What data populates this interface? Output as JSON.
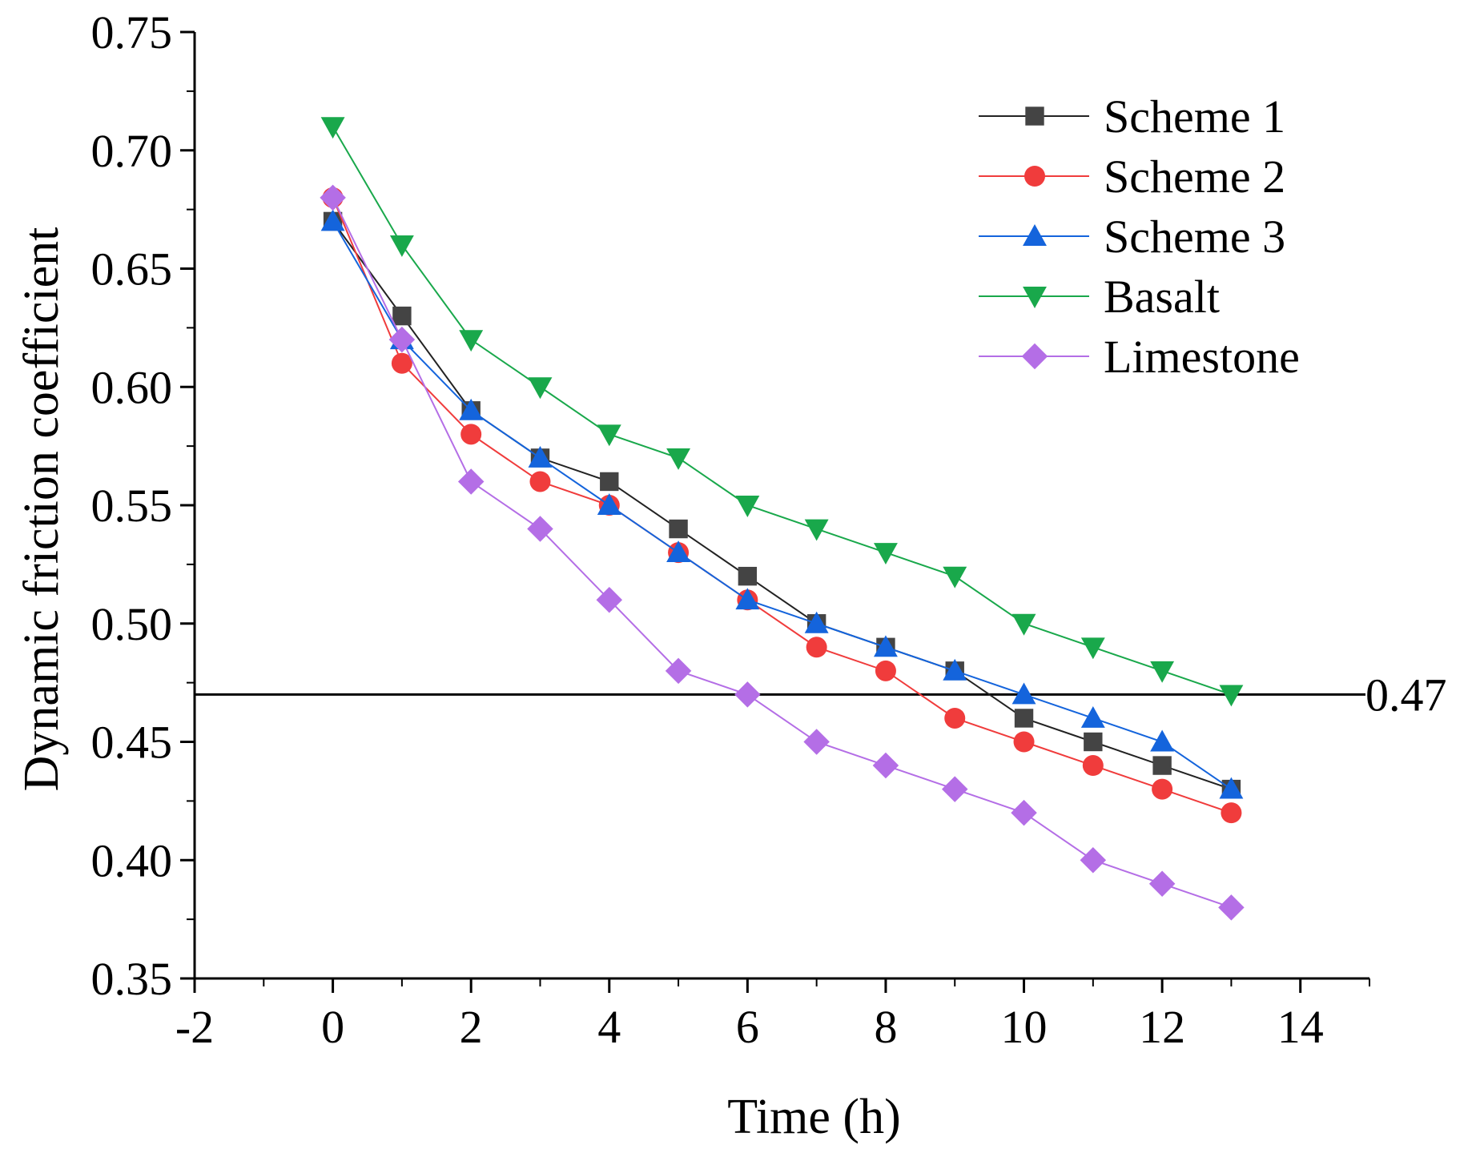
{
  "chart_data": {
    "type": "line",
    "title": "",
    "xlabel": "Time (h)",
    "ylabel": "Dynamic friction coefficient",
    "xlim": [
      -2,
      15
    ],
    "ylim": [
      0.35,
      0.75
    ],
    "x_ticks": [
      -2,
      0,
      2,
      4,
      6,
      8,
      10,
      12,
      14
    ],
    "x_tick_labels": [
      "-2",
      "0",
      "2",
      "4",
      "6",
      "8",
      "10",
      "12",
      "14"
    ],
    "y_ticks": [
      0.35,
      0.4,
      0.45,
      0.5,
      0.55,
      0.6,
      0.65,
      0.7,
      0.75
    ],
    "y_tick_labels": [
      "0.35",
      "0.40",
      "0.45",
      "0.50",
      "0.55",
      "0.60",
      "0.65",
      "0.70",
      "0.75"
    ],
    "grid": false,
    "legend_position": "top-right",
    "x": [
      0,
      1,
      2,
      3,
      4,
      5,
      6,
      7,
      8,
      9,
      10,
      11,
      12,
      13
    ],
    "series": [
      {
        "name": "Scheme 1",
        "color": "#444444",
        "line_color": "#222222",
        "marker": "square",
        "values": [
          0.67,
          0.63,
          0.59,
          0.57,
          0.56,
          0.54,
          0.52,
          0.5,
          0.49,
          0.48,
          0.46,
          0.45,
          0.44,
          0.43
        ]
      },
      {
        "name": "Scheme 2",
        "color": "#f03c3c",
        "line_color": "#f03c3c",
        "marker": "circle",
        "values": [
          0.68,
          0.61,
          0.58,
          0.56,
          0.55,
          0.53,
          0.51,
          0.49,
          0.48,
          0.46,
          0.45,
          0.44,
          0.43,
          0.42
        ]
      },
      {
        "name": "Scheme 3",
        "color": "#1464dc",
        "line_color": "#1464dc",
        "marker": "triangle-up",
        "values": [
          0.67,
          0.62,
          0.59,
          0.57,
          0.55,
          0.53,
          0.51,
          0.5,
          0.49,
          0.48,
          0.47,
          0.46,
          0.45,
          0.43
        ]
      },
      {
        "name": "Basalt",
        "color": "#19a84b",
        "line_color": "#19a84b",
        "marker": "triangle-down",
        "values": [
          0.71,
          0.66,
          0.62,
          0.6,
          0.58,
          0.57,
          0.55,
          0.54,
          0.53,
          0.52,
          0.5,
          0.49,
          0.48,
          0.47
        ]
      },
      {
        "name": "Limestone",
        "color": "#b46ee6",
        "line_color": "#b46ee6",
        "marker": "diamond",
        "values": [
          0.68,
          0.62,
          0.56,
          0.54,
          0.51,
          0.48,
          0.47,
          0.45,
          0.44,
          0.43,
          0.42,
          0.4,
          0.39,
          0.38
        ]
      }
    ],
    "reference_line": {
      "y": 0.47,
      "label": "0.47",
      "color": "#000000"
    }
  }
}
